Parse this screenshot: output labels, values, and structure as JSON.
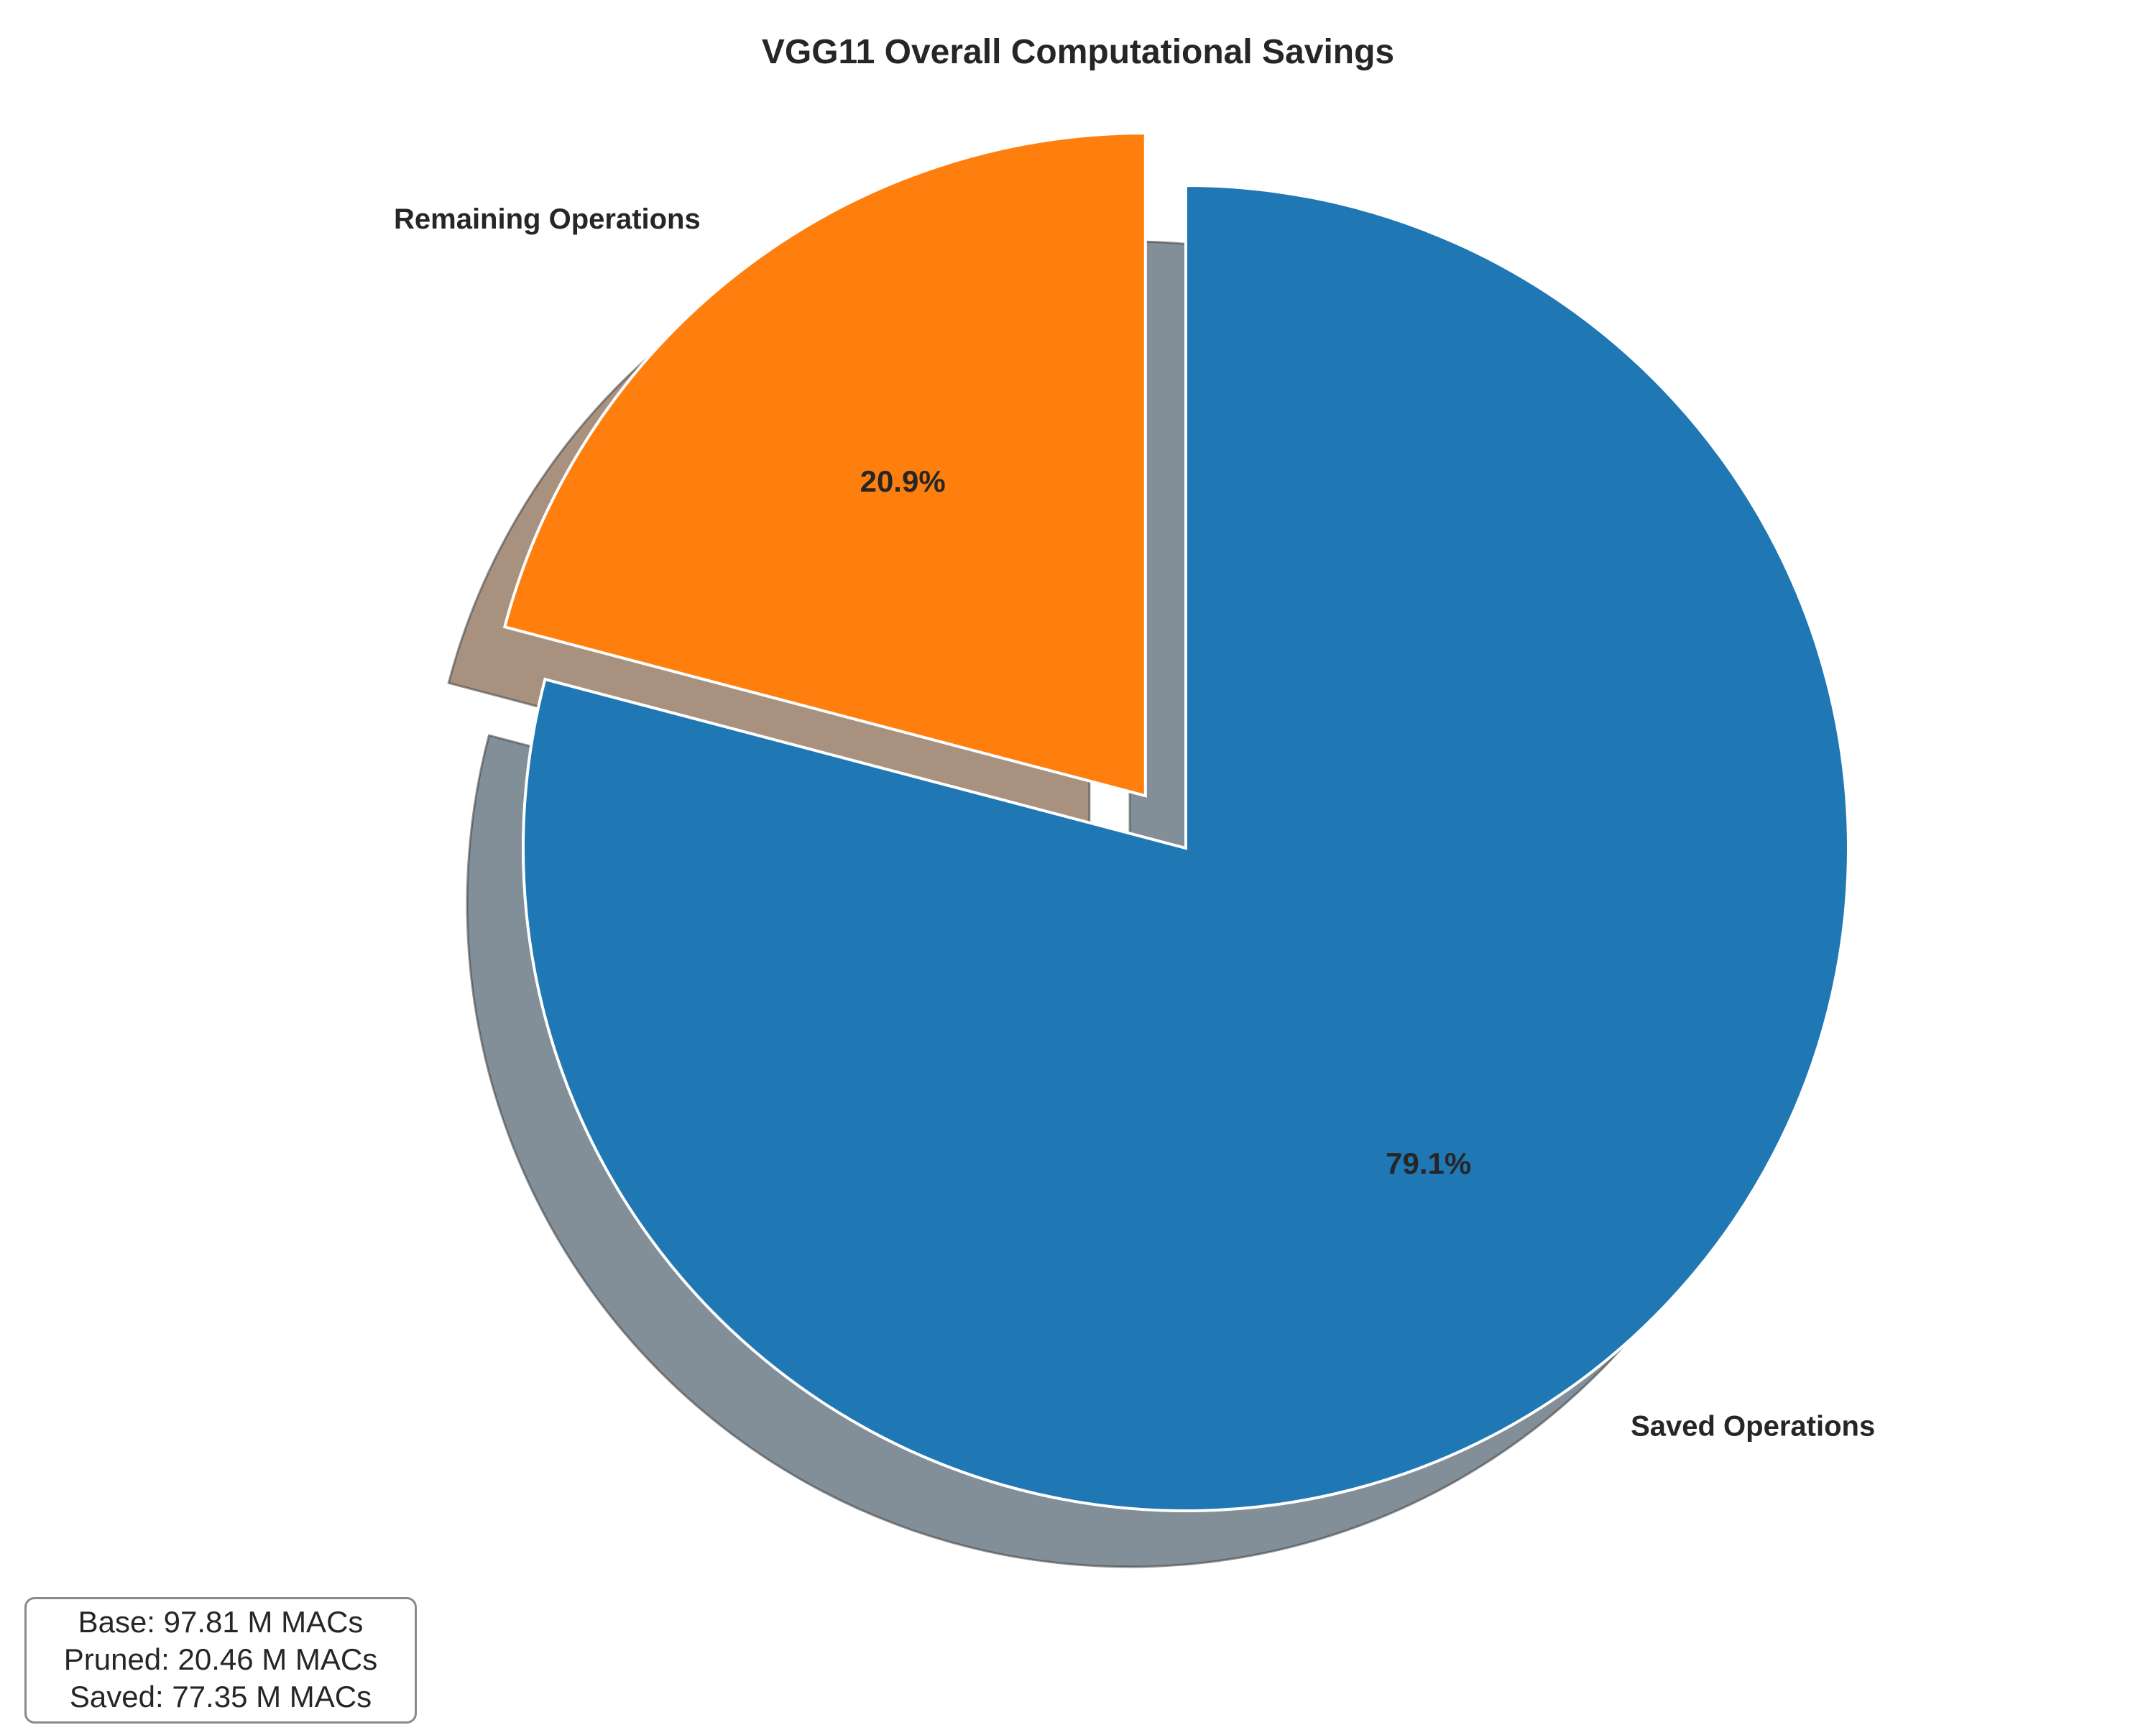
{
  "chart_data": {
    "type": "pie",
    "title": "VGG11 Overall Computational Savings",
    "start_angle_deg": 90,
    "counterclock": false,
    "shadow": true,
    "slices": [
      {
        "label": "Saved Operations",
        "value": 79.1,
        "pct_label": "79.1%",
        "color": "#1f77b4",
        "shadow_color": "#828f98",
        "explode": false
      },
      {
        "label": "Remaining Operations",
        "value": 20.9,
        "pct_label": "20.9%",
        "color": "#ff7f0e",
        "shadow_color": "#a8927f",
        "explode": true
      }
    ]
  },
  "info_box": {
    "lines": [
      "Base: 97.81 M MACs",
      "Pruned: 20.46 M MACs",
      "Saved: 77.35 M MACs"
    ]
  }
}
